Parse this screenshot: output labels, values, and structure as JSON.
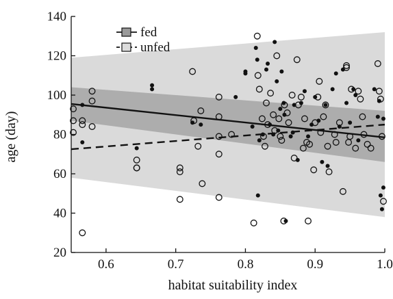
{
  "chart_data": {
    "type": "scatter",
    "xlabel": "habitat suitability index",
    "ylabel": "age (day)",
    "xlim": [
      0.55,
      1.0
    ],
    "ylim": [
      20,
      140
    ],
    "xticks": [
      0.6,
      0.7,
      0.8,
      0.9,
      1.0
    ],
    "xtick_labels": [
      "0.6",
      "0.7",
      "0.8",
      "0.9",
      "1.0"
    ],
    "yticks": [
      20,
      40,
      60,
      80,
      100,
      120,
      140
    ],
    "ytick_labels": [
      "20",
      "40",
      "60",
      "80",
      "100",
      "120",
      "140"
    ],
    "grid": false,
    "legend_position": "top-left",
    "legend": [
      {
        "label": "fed",
        "line": "solid",
        "fill": "#9a9a9a"
      },
      {
        "label": "unfed",
        "line": "dashed",
        "fill": "#dcdcdc"
      }
    ],
    "series": [
      {
        "name": "fed",
        "marker": "filled-circle",
        "color": "#111111",
        "fit": {
          "x": [
            0.55,
            1.0
          ],
          "y": [
            95.5,
            78.5
          ]
        },
        "band": {
          "x": [
            0.55,
            1.0
          ],
          "upper": [
            104,
            92
          ],
          "lower": [
            87,
            66
          ]
        },
        "points": [
          [
            0.566,
            95
          ],
          [
            0.566,
            76
          ],
          [
            0.644,
            73
          ],
          [
            0.666,
            105
          ],
          [
            0.666,
            103
          ],
          [
            0.724,
            86
          ],
          [
            0.736,
            85
          ],
          [
            0.786,
            99
          ],
          [
            0.8,
            112
          ],
          [
            0.8,
            111
          ],
          [
            0.81,
            84
          ],
          [
            0.815,
            124
          ],
          [
            0.817,
            118
          ],
          [
            0.818,
            49
          ],
          [
            0.82,
            77
          ],
          [
            0.825,
            80
          ],
          [
            0.83,
            113
          ],
          [
            0.832,
            116
          ],
          [
            0.835,
            85
          ],
          [
            0.84,
            80
          ],
          [
            0.842,
            127
          ],
          [
            0.845,
            107
          ],
          [
            0.847,
            82
          ],
          [
            0.85,
            93
          ],
          [
            0.852,
            112
          ],
          [
            0.855,
            96
          ],
          [
            0.856,
            90
          ],
          [
            0.858,
            36
          ],
          [
            0.865,
            79
          ],
          [
            0.868,
            81
          ],
          [
            0.87,
            95
          ],
          [
            0.875,
            67
          ],
          [
            0.88,
            96
          ],
          [
            0.885,
            102
          ],
          [
            0.89,
            79
          ],
          [
            0.895,
            85
          ],
          [
            0.9,
            99
          ],
          [
            0.905,
            87
          ],
          [
            0.91,
            66
          ],
          [
            0.915,
            95
          ],
          [
            0.918,
            64
          ],
          [
            0.925,
            103
          ],
          [
            0.93,
            111
          ],
          [
            0.935,
            84
          ],
          [
            0.94,
            113
          ],
          [
            0.945,
            96
          ],
          [
            0.95,
            86
          ],
          [
            0.955,
            103
          ],
          [
            0.958,
            100
          ],
          [
            0.962,
            77
          ],
          [
            0.985,
            103
          ],
          [
            0.99,
            89
          ],
          [
            0.992,
            97
          ],
          [
            0.994,
            49
          ],
          [
            0.996,
            42
          ],
          [
            0.998,
            53
          ],
          [
            0.998,
            88
          ]
        ]
      },
      {
        "name": "unfed",
        "marker": "open-circle",
        "color": "#111111",
        "fit": {
          "x": [
            0.55,
            1.0
          ],
          "y": [
            72.5,
            85
          ]
        },
        "band": {
          "x": [
            0.55,
            1.0
          ],
          "upper": [
            119,
            132
          ],
          "lower": [
            58,
            38
          ]
        },
        "points": [
          [
            0.553,
            93
          ],
          [
            0.553,
            87
          ],
          [
            0.553,
            81
          ],
          [
            0.566,
            30
          ],
          [
            0.566,
            87
          ],
          [
            0.566,
            85
          ],
          [
            0.58,
            102
          ],
          [
            0.58,
            97
          ],
          [
            0.58,
            84
          ],
          [
            0.644,
            67
          ],
          [
            0.644,
            63
          ],
          [
            0.644,
            63
          ],
          [
            0.706,
            63
          ],
          [
            0.706,
            61
          ],
          [
            0.706,
            47
          ],
          [
            0.724,
            112
          ],
          [
            0.726,
            87
          ],
          [
            0.732,
            74
          ],
          [
            0.736,
            92
          ],
          [
            0.738,
            55
          ],
          [
            0.762,
            99
          ],
          [
            0.762,
            89
          ],
          [
            0.762,
            79
          ],
          [
            0.762,
            70
          ],
          [
            0.762,
            48
          ],
          [
            0.78,
            80
          ],
          [
            0.812,
            35
          ],
          [
            0.817,
            130
          ],
          [
            0.818,
            110
          ],
          [
            0.82,
            103
          ],
          [
            0.824,
            88
          ],
          [
            0.826,
            79
          ],
          [
            0.828,
            74
          ],
          [
            0.83,
            96
          ],
          [
            0.832,
            85
          ],
          [
            0.836,
            101
          ],
          [
            0.84,
            90
          ],
          [
            0.842,
            82
          ],
          [
            0.845,
            120
          ],
          [
            0.848,
            88
          ],
          [
            0.85,
            79
          ],
          [
            0.852,
            77
          ],
          [
            0.855,
            36
          ],
          [
            0.856,
            95
          ],
          [
            0.86,
            91
          ],
          [
            0.862,
            86
          ],
          [
            0.867,
            100
          ],
          [
            0.87,
            68
          ],
          [
            0.874,
            118
          ],
          [
            0.876,
            95
          ],
          [
            0.88,
            99
          ],
          [
            0.883,
            73
          ],
          [
            0.885,
            88
          ],
          [
            0.888,
            76
          ],
          [
            0.89,
            36
          ],
          [
            0.892,
            75
          ],
          [
            0.898,
            62
          ],
          [
            0.9,
            86
          ],
          [
            0.904,
            99
          ],
          [
            0.906,
            107
          ],
          [
            0.908,
            81
          ],
          [
            0.912,
            89
          ],
          [
            0.915,
            95
          ],
          [
            0.918,
            74
          ],
          [
            0.92,
            61
          ],
          [
            0.928,
            80
          ],
          [
            0.93,
            76
          ],
          [
            0.935,
            86
          ],
          [
            0.94,
            51
          ],
          [
            0.945,
            115
          ],
          [
            0.945,
            114
          ],
          [
            0.948,
            76
          ],
          [
            0.95,
            79
          ],
          [
            0.952,
            103
          ],
          [
            0.958,
            73
          ],
          [
            0.962,
            102
          ],
          [
            0.965,
            98
          ],
          [
            0.968,
            89
          ],
          [
            0.97,
            80
          ],
          [
            0.975,
            75
          ],
          [
            0.98,
            73
          ],
          [
            0.99,
            116
          ],
          [
            0.992,
            102
          ],
          [
            0.994,
            98
          ],
          [
            0.996,
            79
          ],
          [
            0.998,
            46
          ]
        ]
      }
    ]
  }
}
